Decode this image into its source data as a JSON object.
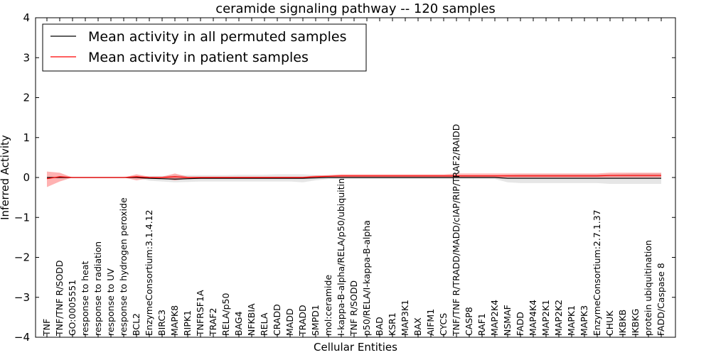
{
  "chart_data": {
    "type": "line",
    "title": "ceramide signaling pathway -- 120 samples",
    "xlabel": "Cellular Entities",
    "ylabel": "Inferred Activity",
    "ylim": [
      -4,
      4
    ],
    "yticks": [
      -4,
      -3,
      -2,
      -1,
      0,
      1,
      2,
      3,
      4
    ],
    "ytick_labels": [
      "−4",
      "−3",
      "−2",
      "−1",
      "0",
      "1",
      "2",
      "3",
      "4"
    ],
    "grid": false,
    "legend_position": "top-left",
    "categories": [
      "TNF",
      "TNF/TNF R/SODD",
      "GO:0005551",
      "response to heat",
      "response to radiation",
      "response to UV",
      "response to hydrogen peroxide",
      "BCL2",
      "EnzymeConsortium:3.1.4.12",
      "BIRC3",
      "MAPK8",
      "RIPK1",
      "TNFRSF1A",
      "TRAF2",
      "RELA/p50",
      "BAG4",
      "NFKBIA",
      "RELA",
      "CRADD",
      "MADD",
      "TRADD",
      "SMPD1",
      "mol:ceramide",
      "I-kappa-B-alpha/RELA/p50/ubiquitin",
      "TNF R/SODD",
      "p50/RELA/I-kappa-B-alpha",
      "BAD",
      "KSR1",
      "MAP3K1",
      "BAX",
      "AIFM1",
      "CYCS",
      "TNF/TNF R/TRADD/MADD/cIAP/RIP/TRAF2/RAIDD",
      "CASP8",
      "RAF1",
      "MAP2K4",
      "NSMAF",
      "FADD",
      "MAP4K4",
      "MAP2K1",
      "MAP2K2",
      "MAPK1",
      "MAPK3",
      "EnzymeConsortium:2.7.1.37",
      "CHUK",
      "IKBKB",
      "IKBKG",
      "protein ubiquitination",
      "FADD/Caspase 8"
    ],
    "series": [
      {
        "name": "Mean activity in all permuted samples",
        "color": "#000000",
        "values": [
          0.0,
          0.0,
          0.0,
          0.0,
          0.0,
          0.0,
          0.0,
          0.0,
          -0.02,
          -0.03,
          -0.04,
          -0.03,
          -0.02,
          -0.02,
          -0.02,
          -0.02,
          -0.02,
          -0.02,
          -0.02,
          -0.02,
          -0.02,
          -0.01,
          0.0,
          0.0,
          0.0,
          0.0,
          0.0,
          0.0,
          0.0,
          0.0,
          0.0,
          0.0,
          0.0,
          0.0,
          0.0,
          0.0,
          -0.02,
          -0.02,
          -0.02,
          -0.02,
          -0.02,
          -0.02,
          -0.02,
          -0.02,
          -0.02,
          -0.02,
          -0.02,
          -0.02,
          -0.02
        ],
        "lower": [
          0.0,
          0.0,
          0.0,
          0.0,
          0.0,
          0.0,
          0.0,
          0.0,
          -0.08,
          -0.1,
          -0.12,
          -0.11,
          -0.1,
          -0.1,
          -0.1,
          -0.1,
          -0.1,
          -0.1,
          -0.1,
          -0.1,
          -0.12,
          -0.07,
          -0.04,
          -0.04,
          -0.04,
          -0.04,
          -0.04,
          -0.04,
          -0.04,
          -0.04,
          -0.04,
          -0.04,
          -0.04,
          -0.04,
          -0.04,
          -0.04,
          -0.12,
          -0.14,
          -0.14,
          -0.14,
          -0.14,
          -0.14,
          -0.14,
          -0.14,
          -0.16,
          -0.16,
          -0.16,
          -0.16,
          -0.16
        ],
        "upper": [
          0.0,
          0.0,
          0.0,
          0.0,
          0.0,
          0.0,
          0.0,
          0.0,
          0.04,
          0.04,
          0.05,
          0.06,
          0.06,
          0.06,
          0.06,
          0.07,
          0.07,
          0.07,
          0.08,
          0.08,
          0.08,
          0.06,
          0.05,
          0.05,
          0.05,
          0.05,
          0.05,
          0.05,
          0.05,
          0.05,
          0.05,
          0.05,
          0.05,
          0.05,
          0.05,
          0.05,
          0.07,
          0.08,
          0.08,
          0.08,
          0.08,
          0.08,
          0.08,
          0.08,
          0.08,
          0.09,
          0.1,
          0.1,
          0.1
        ]
      },
      {
        "name": "Mean activity in patient samples",
        "color": "#ff0000",
        "values": [
          -0.03,
          0.02,
          0.0,
          0.0,
          0.0,
          0.0,
          0.0,
          0.02,
          0.0,
          0.0,
          0.02,
          0.0,
          0.0,
          0.0,
          0.0,
          0.0,
          0.0,
          0.0,
          0.0,
          0.0,
          0.0,
          0.02,
          0.03,
          0.04,
          0.04,
          0.04,
          0.04,
          0.04,
          0.04,
          0.04,
          0.04,
          0.04,
          0.04,
          0.04,
          0.04,
          0.04,
          0.04,
          0.04,
          0.04,
          0.04,
          0.04,
          0.04,
          0.04,
          0.04,
          0.05,
          0.05,
          0.05,
          0.05,
          0.05
        ],
        "lower": [
          -0.24,
          -0.1,
          0.0,
          0.0,
          0.0,
          0.0,
          0.0,
          -0.07,
          -0.02,
          -0.02,
          -0.07,
          -0.03,
          -0.02,
          -0.02,
          -0.02,
          -0.02,
          -0.02,
          -0.02,
          -0.02,
          -0.02,
          -0.02,
          -0.01,
          0.0,
          0.0,
          0.0,
          0.0,
          0.0,
          0.0,
          0.0,
          0.0,
          0.0,
          0.0,
          0.0,
          0.0,
          0.0,
          0.0,
          0.0,
          0.0,
          0.0,
          0.0,
          0.0,
          0.0,
          0.0,
          0.0,
          0.0,
          0.0,
          0.0,
          0.0,
          0.0
        ],
        "upper": [
          0.15,
          0.12,
          0.0,
          0.0,
          0.0,
          0.0,
          0.0,
          0.08,
          0.02,
          0.02,
          0.1,
          0.02,
          0.02,
          0.02,
          0.02,
          0.02,
          0.02,
          0.02,
          0.02,
          0.02,
          0.02,
          0.05,
          0.06,
          0.08,
          0.08,
          0.08,
          0.08,
          0.08,
          0.08,
          0.08,
          0.08,
          0.08,
          0.1,
          0.1,
          0.1,
          0.1,
          0.1,
          0.1,
          0.1,
          0.1,
          0.1,
          0.1,
          0.1,
          0.1,
          0.12,
          0.12,
          0.12,
          0.12,
          0.12
        ]
      }
    ]
  }
}
